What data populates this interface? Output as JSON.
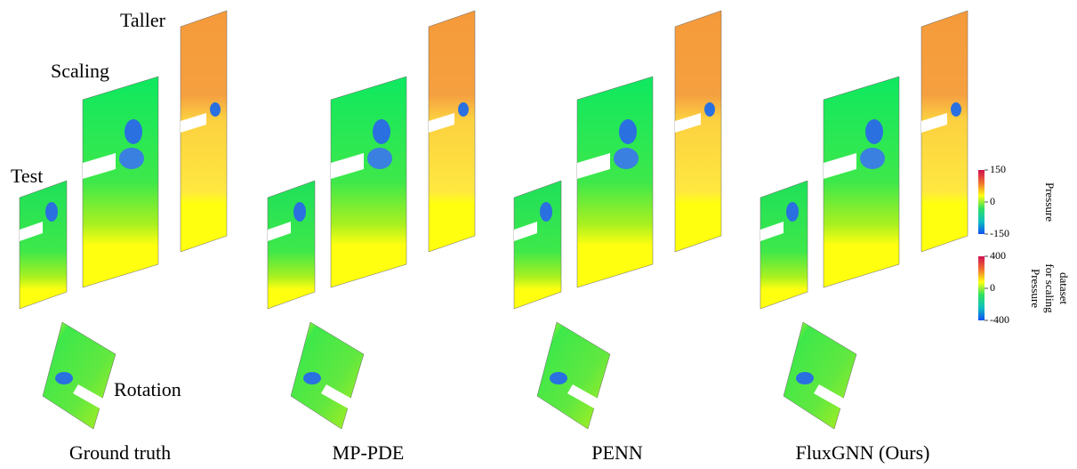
{
  "panel_labels": {
    "taller": "Taller",
    "scaling": "Scaling",
    "test": "Test",
    "rotation": "Rotation"
  },
  "methods": [
    "Ground truth",
    "MP-PDE",
    "PENN",
    "FluxGNN (Ours)"
  ],
  "colorbars": [
    {
      "label_lines": [
        "Pressure"
      ],
      "ticks": [
        150,
        0,
        -150
      ]
    },
    {
      "label_lines": [
        "Pressure",
        "for scaling",
        "dataset"
      ],
      "ticks": [
        400,
        0,
        -400
      ]
    }
  ]
}
